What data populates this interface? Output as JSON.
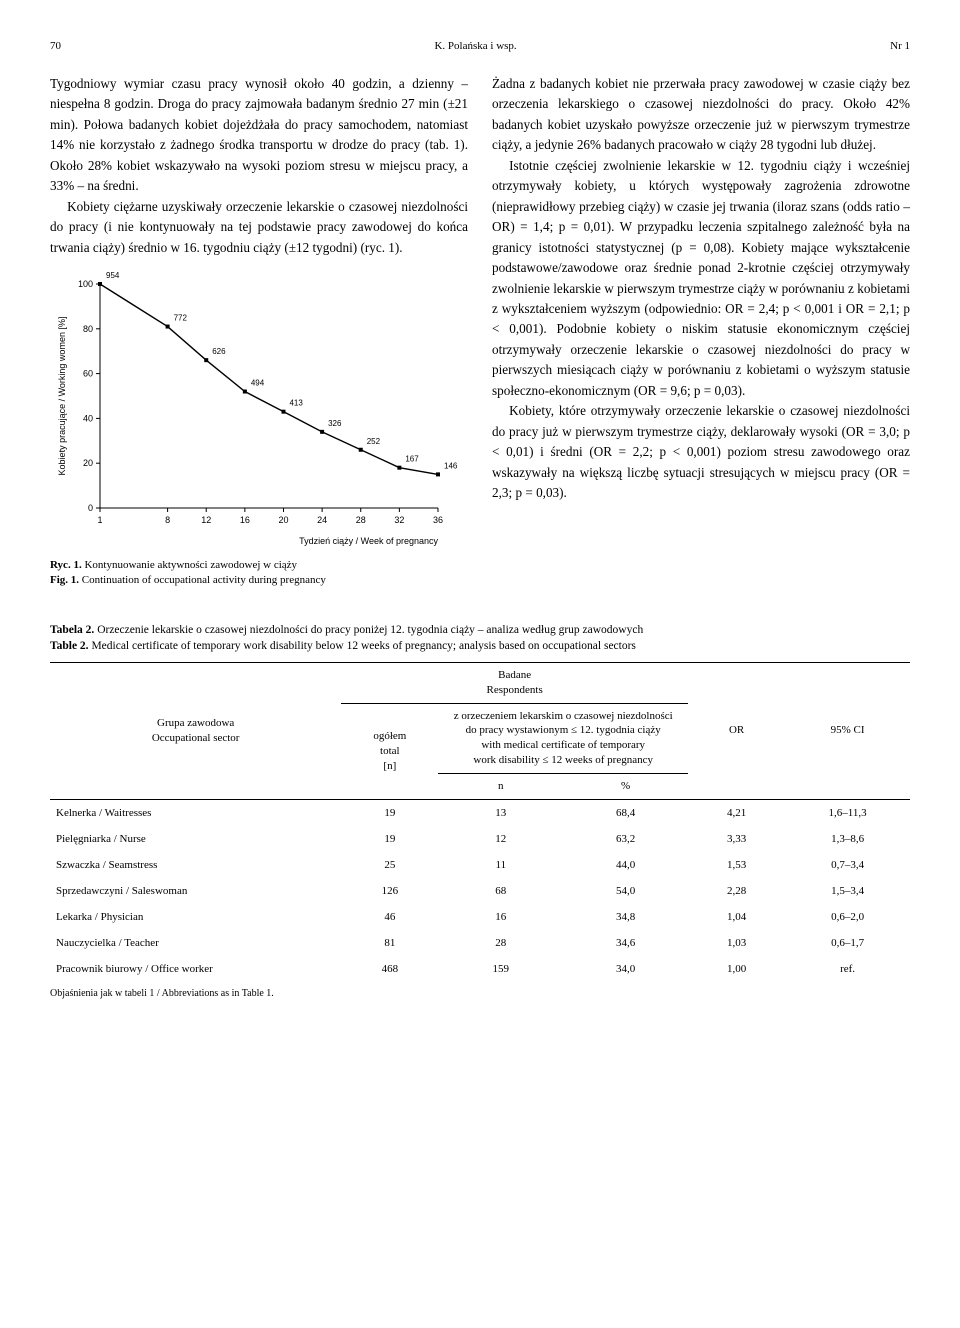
{
  "header": {
    "page_number": "70",
    "running_head_left": "K. Polańska i wsp.",
    "running_head_right": "Nr 1"
  },
  "left_column": {
    "p1": "Tygodniowy wymiar czasu pracy wynosił około 40 godzin, a dzienny – niespełna 8 godzin. Droga do pracy zajmowała badanym średnio 27 min (±21 min). Połowa badanych kobiet dojeżdżała do pracy samochodem, natomiast 14% nie korzystało z żadnego środka transportu w drodze do pracy (tab. 1). Około 28% kobiet wskazywało na wysoki poziom stresu w miejscu pracy, a 33% – na średni.",
    "p2": "Kobiety ciężarne uzyskiwały orzeczenie lekarskie o czasowej niezdolności do pracy (i nie kontynuowały na tej podstawie pracy zawodowej do końca trwania ciąży) średnio w 16. tygodniu ciąży (±12 tygodni) (ryc. 1)."
  },
  "right_column": {
    "p1": "Żadna z badanych kobiet nie przerwała pracy zawodowej w czasie ciąży bez orzeczenia lekarskiego o czasowej niezdolności do pracy. Około 42% badanych kobiet uzyskało powyższe orzeczenie już w pierwszym trymestrze ciąży, a jedynie 26% badanych pracowało w ciąży 28 tygodni lub dłużej.",
    "p2": "Istotnie częściej zwolnienie lekarskie w 12. tygodniu ciąży i wcześniej otrzymywały kobiety, u których występowały zagrożenia zdrowotne (nieprawidłowy przebieg ciąży) w czasie jej trwania (iloraz szans (odds ratio – OR) = 1,4; p = 0,01). W przypadku leczenia szpitalnego zależność była na granicy istotności statystycznej (p = 0,08). Kobiety mające wykształcenie podstawowe/zawodowe oraz średnie ponad 2-krotnie częściej otrzymywały zwolnienie lekarskie w pierwszym trymestrze ciąży w porównaniu z kobietami z wykształceniem wyższym (odpowiednio: OR = 2,4; p < 0,001 i OR = 2,1; p < 0,001). Podobnie kobiety o niskim statusie ekonomicznym częściej otrzymywały orzeczenie lekarskie o czasowej niezdolności do pracy w pierwszych miesiącach ciąży w porównaniu z kobietami o wyższym statusie społeczno-ekonomicznym (OR = 9,6; p = 0,03).",
    "p3": "Kobiety, które otrzymywały orzeczenie lekarskie o czasowej niezdolności do pracy już w pierwszym trymestrze ciąży, deklarowały wysoki (OR = 3,0; p < 0,01) i średni (OR = 2,2; p < 0,001) poziom stresu zawodowego oraz wskazywały na większą liczbę sytuacji stresujących w miejscu pracy (OR = 2,3; p = 0,03)."
  },
  "chart": {
    "type": "line",
    "x_values": [
      1,
      8,
      12,
      16,
      20,
      24,
      28,
      32,
      36
    ],
    "y_values": [
      100,
      81,
      66,
      52,
      43,
      34,
      26,
      18,
      15
    ],
    "point_labels": [
      "954",
      "772",
      "626",
      "494",
      "413",
      "326",
      "252",
      "167",
      "146"
    ],
    "ylabel": "Kobiety pracujące / Working women [%]",
    "xlabel": "Tydzień ciąży / Week of pregnancy",
    "xlim": [
      1,
      36
    ],
    "ylim": [
      0,
      100
    ],
    "ytick_step": 20,
    "line_color": "#000000",
    "marker_fill": "#000000",
    "marker_size": 4,
    "axis_color": "#000000",
    "background": "#ffffff",
    "label_fontsize": 9,
    "axis_fontsize": 9,
    "plabel_fontsize": 8
  },
  "chart_caption": {
    "line1_bold": "Ryc. 1.",
    "line1_rest": " Kontynuowanie aktywności zawodowej w ciąży",
    "line2_bold": "Fig. 1.",
    "line2_rest": " Continuation of occupational activity during pregnancy"
  },
  "table_caption": {
    "line1_bold": "Tabela 2.",
    "line1_rest": " Orzeczenie lekarskie o czasowej niezdolności do pracy poniżej 12. tygodnia ciąży – analiza według grup zawodowych",
    "line2_bold": "Table 2.",
    "line2_rest": " Medical certificate of temporary work disability below 12 weeks of pregnancy; analysis based on occupational sectors"
  },
  "table": {
    "head_group_col": "Grupa zawodowa\nOccupational sector",
    "head_respondents": "Badane\nRespondents",
    "head_total": "ogółem\ntotal\n[n]",
    "head_cert": "z orzeczeniem lekarskim o czasowej niezdolności\ndo pracy wystawionym ≤ 12. tygodnia ciąży\nwith medical certificate of temporary\nwork disability ≤ 12 weeks of pregnancy",
    "head_or": "OR",
    "head_ci": "95% CI",
    "head_n": "n",
    "head_pct": "%",
    "rows": [
      {
        "label": "Kelnerka / Waitresses",
        "total": "19",
        "n": "13",
        "pct": "68,4",
        "or": "4,21",
        "ci": "1,6–11,3"
      },
      {
        "label": "Pielęgniarka / Nurse",
        "total": "19",
        "n": "12",
        "pct": "63,2",
        "or": "3,33",
        "ci": "1,3–8,6"
      },
      {
        "label": "Szwaczka / Seamstress",
        "total": "25",
        "n": "11",
        "pct": "44,0",
        "or": "1,53",
        "ci": "0,7–3,4"
      },
      {
        "label": "Sprzedawczyni / Saleswoman",
        "total": "126",
        "n": "68",
        "pct": "54,0",
        "or": "2,28",
        "ci": "1,5–3,4"
      },
      {
        "label": "Lekarka / Physician",
        "total": "46",
        "n": "16",
        "pct": "34,8",
        "or": "1,04",
        "ci": "0,6–2,0"
      },
      {
        "label": "Nauczycielka / Teacher",
        "total": "81",
        "n": "28",
        "pct": "34,6",
        "or": "1,03",
        "ci": "0,6–1,7"
      },
      {
        "label": "Pracownik biurowy / Office worker",
        "total": "468",
        "n": "159",
        "pct": "34,0",
        "or": "1,00",
        "ci": "ref."
      }
    ]
  },
  "footnote": "Objaśnienia jak w tabeli 1 / Abbreviations as in Table 1."
}
